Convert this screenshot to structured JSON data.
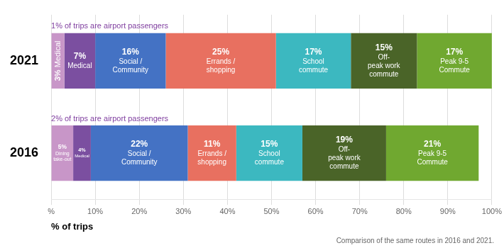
{
  "chart_data": {
    "type": "bar",
    "orientation": "horizontal",
    "stacked": true,
    "data_labels": true,
    "grid": true,
    "categories": [
      "2021",
      "2016"
    ],
    "series": [
      {
        "color": "#c896c8",
        "values": [
          3,
          5
        ],
        "value_labels": [
          "3%",
          "5%"
        ],
        "segment_labels": [
          "Medical",
          "Dining\ntake-out"
        ]
      },
      {
        "color": "#7b4fa0",
        "values": [
          7,
          4
        ],
        "value_labels": [
          "7%",
          "4%"
        ],
        "segment_labels": [
          "Medical",
          "Medical"
        ]
      },
      {
        "color": "#4472c4",
        "values": [
          16,
          22
        ],
        "value_labels": [
          "16%",
          "22%"
        ],
        "segment_labels": [
          "Social /\nCommunity",
          "Social /\nCommunity"
        ]
      },
      {
        "color": "#e87060",
        "values": [
          25,
          11
        ],
        "value_labels": [
          "25%",
          "11%"
        ],
        "segment_labels": [
          "Errands /\nshopping",
          "Errands /\nshopping"
        ]
      },
      {
        "color": "#3cb8c0",
        "values": [
          17,
          15
        ],
        "value_labels": [
          "17%",
          "15%"
        ],
        "segment_labels": [
          "School\ncommute",
          "School\ncommute"
        ]
      },
      {
        "color": "#4a6428",
        "values": [
          15,
          19
        ],
        "value_labels": [
          "15%",
          "19%"
        ],
        "segment_labels": [
          "Off-\npeak work\ncommute",
          "Off-\npeak work\ncommute"
        ]
      },
      {
        "color": "#70a830",
        "values": [
          17,
          21
        ],
        "value_labels": [
          "17%",
          "21%"
        ],
        "segment_labels": [
          "Peak 9-5\nCommute",
          "Peak 9-5\nCommute"
        ]
      }
    ],
    "xlabel": "% of trips",
    "xlim": [
      0,
      100
    ],
    "xticks": [
      {
        "value": 0,
        "label": "%"
      },
      {
        "value": 10,
        "label": "10%"
      },
      {
        "value": 20,
        "label": "20%"
      },
      {
        "value": 30,
        "label": "30%"
      },
      {
        "value": 40,
        "label": "40%"
      },
      {
        "value": 50,
        "label": "50%"
      },
      {
        "value": 60,
        "label": "60%"
      },
      {
        "value": 70,
        "label": "70%"
      },
      {
        "value": 80,
        "label": "80%"
      },
      {
        "value": 90,
        "label": "90%"
      },
      {
        "value": 100,
        "label": "100%"
      }
    ],
    "annotations": [
      {
        "category": "2021",
        "text": "1% of trips are airport passengers",
        "color": "#8040a0"
      },
      {
        "category": "2016",
        "text": "2% of trips are airport passengers",
        "color": "#8040a0"
      }
    ],
    "footnote": "Comparison of the same routes in 2016 and 2021."
  }
}
